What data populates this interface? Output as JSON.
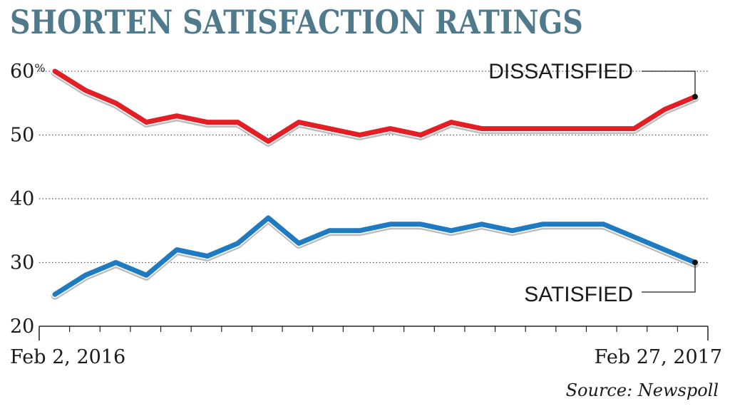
{
  "chart_data": {
    "type": "line",
    "title": "SHORTEN SATISFACTION RATINGS",
    "x_start_label": "Feb 2, 2016",
    "x_end_label": "Feb 27, 2017",
    "y_ticks": [
      20,
      30,
      40,
      50,
      60
    ],
    "y_unit_suffix": "%",
    "ylim": [
      20,
      60
    ],
    "grid": "dotted horizontal",
    "source": "Source: Newspoll",
    "series": [
      {
        "name": "DISSATISFIED",
        "color": "#e31e24",
        "values": [
          60,
          57,
          55,
          52,
          53,
          52,
          52,
          49,
          52,
          51,
          50,
          51,
          50,
          52,
          51,
          51,
          51,
          51,
          51,
          51,
          54,
          56
        ]
      },
      {
        "name": "SATISFIED",
        "color": "#1f7bc1",
        "values": [
          25,
          28,
          30,
          28,
          32,
          31,
          33,
          37,
          33,
          35,
          35,
          36,
          36,
          35,
          36,
          35,
          36,
          36,
          36,
          34,
          32,
          30
        ]
      }
    ]
  }
}
